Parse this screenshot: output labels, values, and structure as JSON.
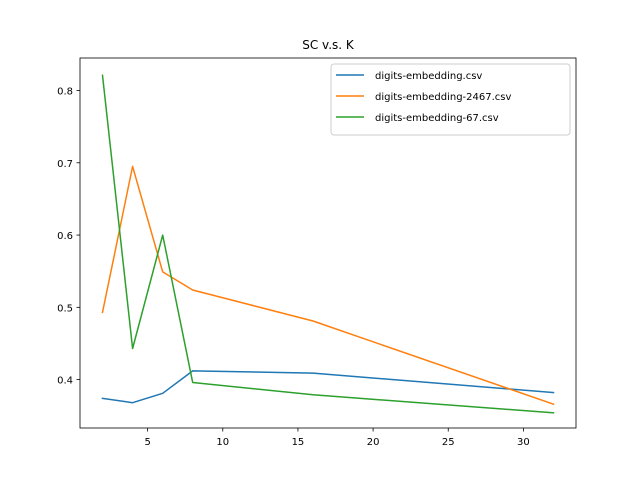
{
  "chart_data": {
    "type": "line",
    "title": "SC v.s. K",
    "xlabel": "",
    "ylabel": "",
    "xlim": [
      0.5,
      33.5
    ],
    "ylim": [
      0.333,
      0.845
    ],
    "xticks": [
      5,
      10,
      15,
      20,
      25,
      30
    ],
    "yticks": [
      0.4,
      0.5,
      0.6,
      0.7,
      0.8
    ],
    "x": [
      2,
      4,
      6,
      8,
      16,
      32
    ],
    "grid": false,
    "legend_position": "top-right",
    "series": [
      {
        "name": "digits-embedding.csv",
        "color": "#1f77b4",
        "values": [
          0.374,
          0.368,
          0.381,
          0.412,
          0.409,
          0.382
        ]
      },
      {
        "name": "digits-embedding-2467.csv",
        "color": "#ff7f0e",
        "values": [
          0.493,
          0.695,
          0.549,
          0.524,
          0.481,
          0.366
        ]
      },
      {
        "name": "digits-embedding-67.csv",
        "color": "#2ca02c",
        "values": [
          0.821,
          0.443,
          0.6,
          0.396,
          0.379,
          0.354
        ]
      }
    ]
  }
}
